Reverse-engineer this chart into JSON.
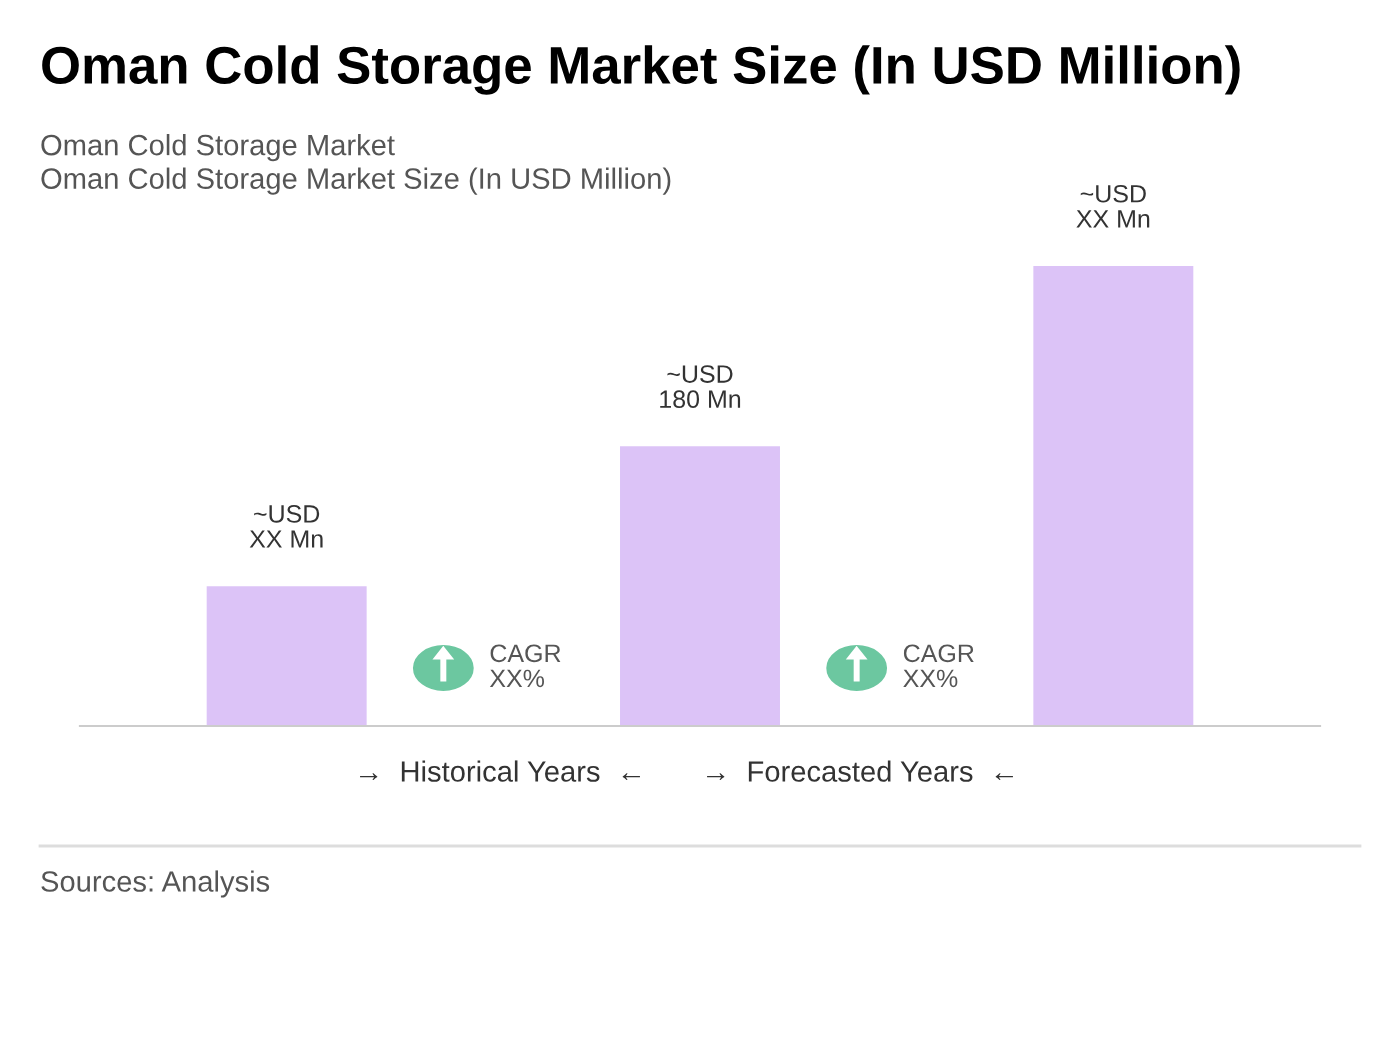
{
  "chart_data": {
    "type": "bar",
    "title": "Oman Cold Storage Market Size (In USD Million)",
    "subtitle": "Oman Cold Storage Market\nOman Cold Storage Market Size (In USD Million)",
    "categories": [
      null,
      null,
      null
    ],
    "values": [
      90,
      180,
      296
    ],
    "color": "#dcc3f7",
    "value_labels": [
      "~USD\nXX Mn",
      "~USD\n180 Mn",
      "~USD\nXX Mn"
    ],
    "annotations": [
      "CAGR\nXX%",
      "CAGR\nXX%",
      "→  Historical Years  ←",
      "→  Forecasted Years  ←",
      "Sources: Analysis"
    ],
    "grid": false,
    "legend": false
  }
}
